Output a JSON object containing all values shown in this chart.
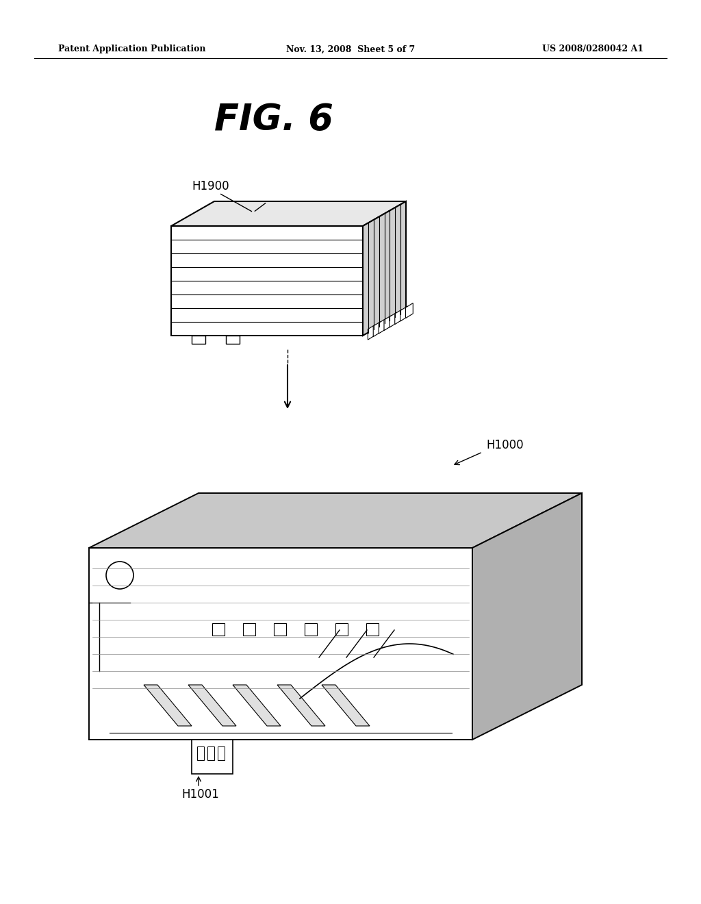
{
  "background_color": "#ffffff",
  "header_left": "Patent Application Publication",
  "header_center": "Nov. 13, 2008  Sheet 5 of 7",
  "header_right": "US 2008/0280042 A1",
  "figure_title": "FIG. 6",
  "label_h1900": "H1900",
  "label_h1000": "H1000",
  "label_h1001": "H1001"
}
